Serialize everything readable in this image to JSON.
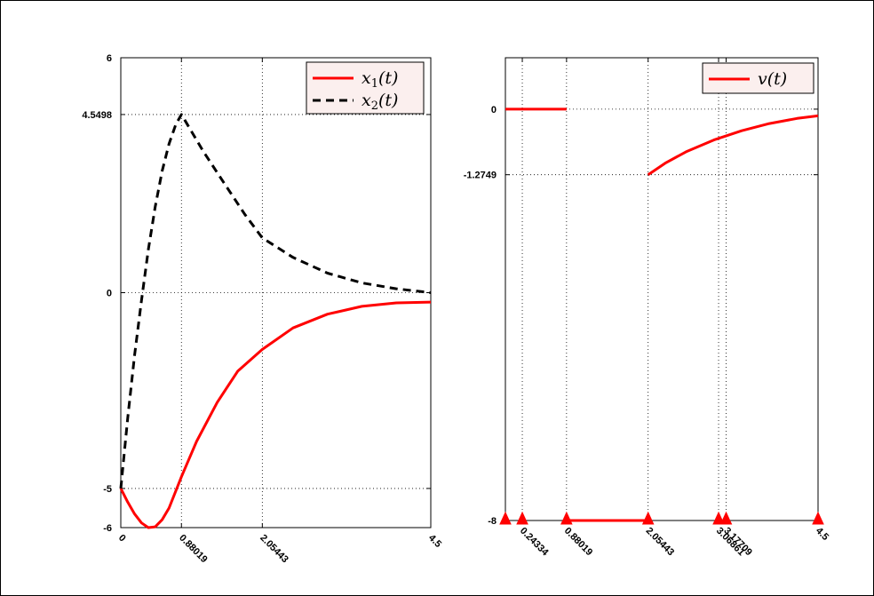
{
  "chart_data": [
    {
      "type": "line",
      "xlim": [
        0,
        4.5
      ],
      "ylim": [
        -6,
        6
      ],
      "xticks": [
        0,
        0.88019,
        2.05443,
        4.5
      ],
      "xtick_labels": [
        "0",
        "0.88019",
        "2.05443",
        "4.5"
      ],
      "yticks": [
        -6,
        -5,
        0,
        4.5498,
        6
      ],
      "ytick_labels": [
        "-6",
        "-5",
        "0",
        "4.5498",
        "6"
      ],
      "grid": true,
      "legend_position": "top-right",
      "legend": [
        "x_1(t)",
        "x_2(t)"
      ],
      "series": [
        {
          "name": "x_1(t)",
          "color": "#ff0000",
          "style": "solid",
          "x": [
            0,
            0.1,
            0.2,
            0.3,
            0.4,
            0.5,
            0.6,
            0.7,
            0.88019,
            1.1,
            1.4,
            1.7,
            2.05443,
            2.5,
            3.0,
            3.5,
            4.0,
            4.5
          ],
          "y": [
            -5,
            -5.35,
            -5.65,
            -5.88,
            -6.0,
            -5.98,
            -5.8,
            -5.5,
            -4.7,
            -3.8,
            -2.8,
            -2.0,
            -1.45,
            -0.9,
            -0.55,
            -0.35,
            -0.26,
            -0.24
          ]
        },
        {
          "name": "x_2(t)",
          "color": "#000000",
          "style": "dashed",
          "x": [
            0,
            0.1,
            0.2,
            0.3,
            0.4,
            0.5,
            0.6,
            0.7,
            0.8,
            0.88019,
            1.2,
            1.5,
            1.8,
            2.05443,
            2.5,
            3.0,
            3.5,
            4.0,
            4.5
          ],
          "y": [
            -5,
            -3.2,
            -1.6,
            -0.2,
            1.1,
            2.2,
            3.1,
            3.8,
            4.3,
            4.5498,
            3.6,
            2.8,
            2.0,
            1.4,
            0.9,
            0.5,
            0.25,
            0.1,
            0.0
          ]
        }
      ]
    },
    {
      "type": "line",
      "xlim": [
        0,
        4.5
      ],
      "ylim": [
        -8,
        1
      ],
      "xticks": [
        0,
        0.24334,
        0.88019,
        2.05443,
        3.06861,
        3.17709,
        4.5
      ],
      "xtick_labels": [
        "",
        "0.24334",
        "0.88019",
        "2.05443",
        "3.06861",
        "3.17709",
        "4.5"
      ],
      "yticks": [
        -8,
        -1.2749,
        0
      ],
      "ytick_labels": [
        "-8",
        "-1.2749",
        "0"
      ],
      "grid": true,
      "legend_position": "top-right",
      "legend": [
        "v(t)"
      ],
      "switching_markers_x": [
        0,
        0.24334,
        0.88019,
        2.05443,
        3.06861,
        3.17709,
        4.5
      ],
      "series": [
        {
          "name": "v(t)",
          "color": "#ff0000",
          "style": "solid",
          "segments": [
            {
              "x": [
                0,
                0.88019
              ],
              "y": [
                0,
                0
              ]
            },
            {
              "x": [
                0.88019,
                2.05443
              ],
              "y": [
                -8,
                -8
              ]
            },
            {
              "x": [
                2.05443,
                2.3,
                2.6,
                3.0,
                3.4,
                3.8,
                4.2,
                4.5
              ],
              "y": [
                -1.2749,
                -1.05,
                -0.83,
                -0.6,
                -0.42,
                -0.28,
                -0.18,
                -0.13
              ]
            }
          ]
        }
      ]
    }
  ]
}
